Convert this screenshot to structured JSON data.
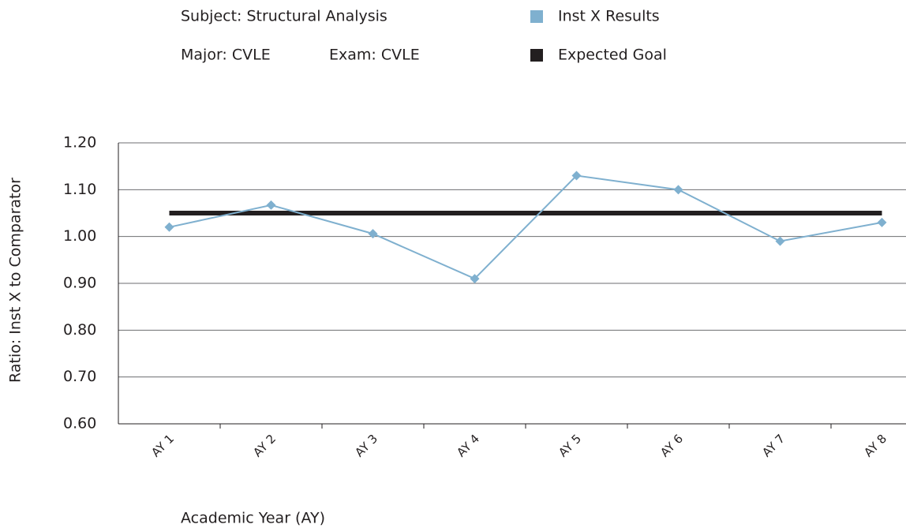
{
  "chart_data": {
    "type": "line",
    "annotations": [
      "Subject: Structural Analysis",
      "Major: CVLE",
      "Exam: CVLE"
    ],
    "x_label": "Academic Year (AY)",
    "y_label": "Ratio: Inst X to Comparator",
    "categories": [
      "AY 1",
      "AY 2",
      "AY 3",
      "AY 4",
      "AY 5",
      "AY 6",
      "AY 7",
      "AY 8"
    ],
    "series": [
      {
        "name": "Inst X Results",
        "color": "#7fb0cf",
        "values": [
          1.02,
          1.067,
          1.006,
          0.91,
          1.13,
          1.1,
          0.99,
          1.03
        ]
      },
      {
        "name": "Expected Goal",
        "color": "#231f20",
        "values": [
          1.05,
          1.05,
          1.05,
          1.05,
          1.05,
          1.05,
          1.05,
          1.05
        ]
      }
    ],
    "ylim": [
      0.6,
      1.2
    ],
    "yticks": [
      {
        "value": 0.6,
        "label": "0.60"
      },
      {
        "value": 0.7,
        "label": "0.70"
      },
      {
        "value": 0.8,
        "label": "0.80"
      },
      {
        "value": 0.9,
        "label": "0.90"
      },
      {
        "value": 1.0,
        "label": "1.00"
      },
      {
        "value": 1.1,
        "label": "1.10"
      },
      {
        "value": 1.2,
        "label": "1.20"
      }
    ],
    "grid": true
  }
}
